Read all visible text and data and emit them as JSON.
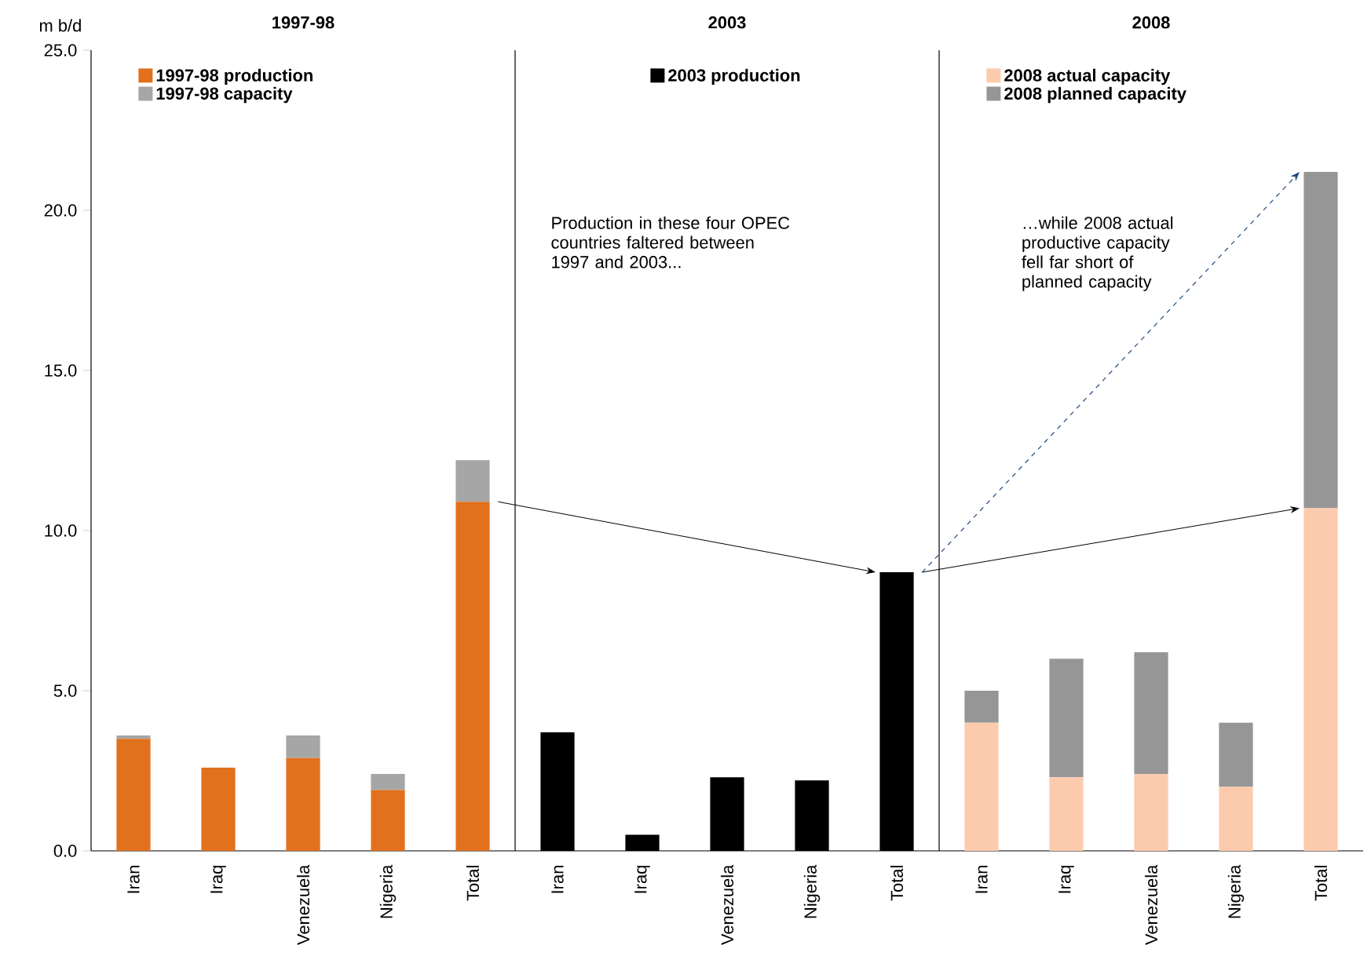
{
  "chart_data": [
    {
      "type": "bar",
      "title": "1997-98",
      "ylabel": "m b/d",
      "categories": [
        "Iran",
        "Iraq",
        "Venezuela",
        "Nigeria",
        "Total"
      ],
      "stacked": true,
      "series": [
        {
          "name": "1997-98 production",
          "color": "#e2711d",
          "values": [
            3.5,
            2.6,
            2.9,
            1.9,
            10.9
          ]
        },
        {
          "name": "1997-98 capacity",
          "color": "#a6a6a6",
          "values": [
            0.1,
            0,
            0.7,
            0.5,
            1.3
          ]
        }
      ],
      "ylim": [
        0,
        25
      ],
      "yticks": [
        {
          "value": 0,
          "label": "0.0"
        },
        {
          "value": 5,
          "label": "5.0"
        },
        {
          "value": 10,
          "label": "10.0"
        },
        {
          "value": 15,
          "label": "15.0"
        },
        {
          "value": 20,
          "label": "20.0"
        },
        {
          "value": 25,
          "label": "25.0"
        }
      ],
      "legend": "top left"
    },
    {
      "type": "bar",
      "title": "2003",
      "categories": [
        "Iran",
        "Iraq",
        "Venezuela",
        "Nigeria",
        "Total"
      ],
      "series": [
        {
          "name": "2003 production",
          "color": "#000000",
          "values": [
            3.7,
            0.5,
            2.3,
            2.2,
            8.7
          ]
        }
      ],
      "ylim": [
        0,
        25
      ],
      "tick_labels": "x",
      "legend": "top",
      "annotations": [
        "Production in these four OPEC countries faltered between 1997 and 2003..."
      ]
    },
    {
      "type": "bar",
      "title": "2008",
      "categories": [
        "Iran",
        "Iraq",
        "Venezuela",
        "Nigeria",
        "Total"
      ],
      "stacked": true,
      "series": [
        {
          "name": "2008 actual capacity",
          "color": "#fccbad",
          "values": [
            4.0,
            2.3,
            2.4,
            2.0,
            10.7
          ]
        },
        {
          "name": "2008 planned capacity",
          "color": "#969696",
          "values": [
            1.0,
            3.7,
            3.8,
            2.0,
            10.5
          ]
        }
      ],
      "ylim": [
        0,
        25
      ],
      "tick_labels": "x",
      "legend": "top left",
      "annotations": [
        "…while 2008 actual productive capacity fell far short of planned capacity"
      ]
    }
  ]
}
